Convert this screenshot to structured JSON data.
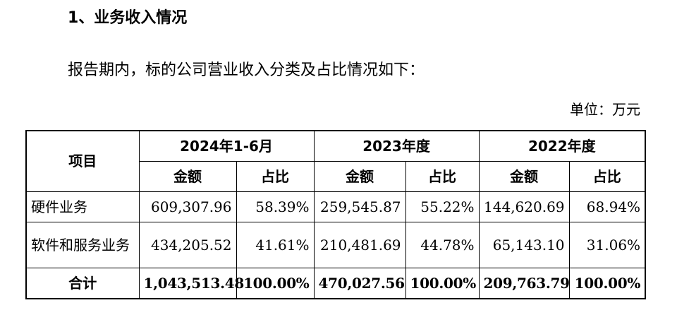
{
  "heading": "1、业务收入情况",
  "intro": "报告期内，标的公司营业收入分类及占比情况如下：",
  "unit": "单位：万元",
  "table": {
    "item_header": "项目",
    "periods": [
      "2024年1-6月",
      "2023年度",
      "2022年度"
    ],
    "amount_header": "金额",
    "share_header": "占比",
    "rows": [
      {
        "label": "硬件业务",
        "values": [
          "609,307.96",
          "58.39%",
          "259,545.87",
          "55.22%",
          "144,620.69",
          "68.94%"
        ]
      },
      {
        "label": "软件和服务业务",
        "values": [
          "434,205.52",
          "41.61%",
          "210,481.69",
          "44.78%",
          "65,143.10",
          "31.06%"
        ]
      }
    ],
    "total": {
      "label": "合计",
      "values": [
        "1,043,513.48",
        "100.00%",
        "470,027.56",
        "100.00%",
        "209,763.79",
        "100.00%"
      ]
    }
  }
}
